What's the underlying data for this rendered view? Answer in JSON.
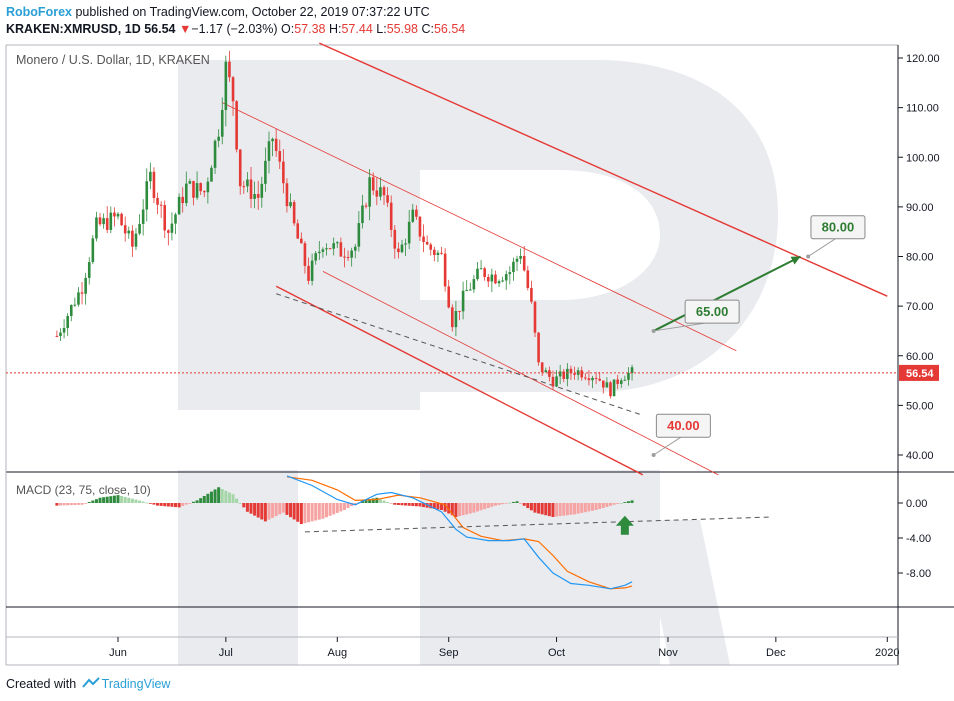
{
  "header": {
    "publisher": "RoboForex",
    "published_text": " published on TradingView.com, October 22, 2019 07:37:22 UTC",
    "symbol": "KRAKEN:XMRUSD, 1D",
    "price": "56.54",
    "change": "−1.17 (−2.03%)",
    "ohlc": {
      "o_label": "O:",
      "o": "57.38",
      "h_label": "H:",
      "h": "57.44",
      "l_label": "L:",
      "l": "55.98",
      "c_label": "C:",
      "c": "56.54"
    }
  },
  "main": {
    "pane_title": "Monero / U.S. Dollar, 1D, KRAKEN",
    "price_axis": [
      "120.00",
      "110.00",
      "100.00",
      "90.00",
      "80.00",
      "70.00",
      "60.00",
      "50.00",
      "40.00"
    ],
    "last_price_label": "56.54",
    "target_labels": [
      "80.00",
      "65.00",
      "40.00"
    ]
  },
  "macd": {
    "title": "MACD (23, 75, close, 10)",
    "axis": [
      "0.00",
      "-4.00",
      "-8.00"
    ]
  },
  "time_axis": [
    "Jun",
    "Jul",
    "Aug",
    "Sep",
    "Oct",
    "Nov",
    "Dec",
    "2020"
  ],
  "footer": {
    "created_with": "Created with",
    "brand": "TradingView"
  },
  "colors": {
    "up": "#2e8b3d",
    "down": "#e53935",
    "channel": "#e53935",
    "macd_line": "#2196f3",
    "signal_line": "#ff6d00",
    "target_up": "#2e7d32",
    "target_down": "#e53935"
  },
  "chart_data": {
    "type": "candlestick",
    "title": "Monero / U.S. Dollar, 1D, KRAKEN",
    "ylim": [
      35,
      123
    ],
    "x_range": [
      "2019-05-15",
      "2020-01-01"
    ],
    "last_price": 56.54,
    "close_path": [
      {
        "date": "2019-05-15",
        "close": 64
      },
      {
        "date": "2019-05-22",
        "close": 74
      },
      {
        "date": "2019-05-26",
        "close": 86
      },
      {
        "date": "2019-06-01",
        "close": 88
      },
      {
        "date": "2019-06-05",
        "close": 82
      },
      {
        "date": "2019-06-10",
        "close": 96
      },
      {
        "date": "2019-06-15",
        "close": 85
      },
      {
        "date": "2019-06-20",
        "close": 94
      },
      {
        "date": "2019-06-25",
        "close": 93
      },
      {
        "date": "2019-06-29",
        "close": 106
      },
      {
        "date": "2019-07-01",
        "close": 118
      },
      {
        "date": "2019-07-03",
        "close": 112
      },
      {
        "date": "2019-07-05",
        "close": 95
      },
      {
        "date": "2019-07-10",
        "close": 92
      },
      {
        "date": "2019-07-14",
        "close": 104
      },
      {
        "date": "2019-07-17",
        "close": 95
      },
      {
        "date": "2019-07-20",
        "close": 86
      },
      {
        "date": "2019-07-24",
        "close": 76
      },
      {
        "date": "2019-07-28",
        "close": 83
      },
      {
        "date": "2019-08-02",
        "close": 81
      },
      {
        "date": "2019-08-06",
        "close": 82
      },
      {
        "date": "2019-08-10",
        "close": 95
      },
      {
        "date": "2019-08-14",
        "close": 92
      },
      {
        "date": "2019-08-18",
        "close": 80
      },
      {
        "date": "2019-08-22",
        "close": 88
      },
      {
        "date": "2019-08-26",
        "close": 82
      },
      {
        "date": "2019-08-30",
        "close": 80
      },
      {
        "date": "2019-09-02",
        "close": 67
      },
      {
        "date": "2019-09-06",
        "close": 73
      },
      {
        "date": "2019-09-10",
        "close": 77
      },
      {
        "date": "2019-09-14",
        "close": 76
      },
      {
        "date": "2019-09-18",
        "close": 77
      },
      {
        "date": "2019-09-21",
        "close": 81
      },
      {
        "date": "2019-09-24",
        "close": 70
      },
      {
        "date": "2019-09-26",
        "close": 58
      },
      {
        "date": "2019-09-30",
        "close": 55
      },
      {
        "date": "2019-10-06",
        "close": 57
      },
      {
        "date": "2019-10-12",
        "close": 56
      },
      {
        "date": "2019-10-16",
        "close": 53
      },
      {
        "date": "2019-10-19",
        "close": 56
      },
      {
        "date": "2019-10-22",
        "close": 56.54
      }
    ],
    "annotations": [
      {
        "label": "65.00",
        "start": [
          "2019-10-28",
          65
        ],
        "end": [
          "2019-12-09",
          80
        ],
        "label_pos": [
          "2019-11-13",
          69
        ]
      },
      {
        "label": "80.00",
        "target_pos": [
          "2019-12-10",
          80
        ],
        "label_pos": [
          "2019-12-18",
          86
        ]
      },
      {
        "label": "40.00",
        "target_pos": [
          "2019-10-28",
          40
        ],
        "label_pos": [
          "2019-11-05",
          46
        ]
      }
    ],
    "channels": [
      {
        "from": [
          "2019-06-30",
          111
        ],
        "to": [
          "2019-11-20",
          61
        ],
        "color": "#e53935",
        "width": 0.8
      },
      {
        "from": [
          "2019-07-28",
          77
        ],
        "to": [
          "2019-11-15",
          36
        ],
        "color": "#e53935",
        "width": 0.8
      },
      {
        "from": [
          "2019-07-15",
          74
        ],
        "to": [
          "2019-10-25",
          36
        ],
        "color": "#e53935",
        "width": 1.4
      },
      {
        "from": [
          "2019-07-27",
          123
        ],
        "to": [
          "2020-01-01",
          72
        ],
        "color": "#e53935",
        "width": 1.4
      }
    ],
    "support_dashed": {
      "from": [
        "2019-07-15",
        72.5
      ],
      "to": [
        "2019-10-25",
        48
      ]
    },
    "macd": {
      "ylim": [
        -11.5,
        3.0
      ],
      "zero": 0,
      "macd_line": [
        {
          "date": "2019-07-18",
          "v": 3.1
        },
        {
          "date": "2019-07-25",
          "v": 2.0
        },
        {
          "date": "2019-08-01",
          "v": 0.4
        },
        {
          "date": "2019-08-06",
          "v": -0.2
        },
        {
          "date": "2019-08-12",
          "v": 1.0
        },
        {
          "date": "2019-08-16",
          "v": 1.2
        },
        {
          "date": "2019-08-22",
          "v": 0.6
        },
        {
          "date": "2019-08-30",
          "v": -1.0
        },
        {
          "date": "2019-09-03",
          "v": -3.0
        },
        {
          "date": "2019-09-06",
          "v": -3.9
        },
        {
          "date": "2019-09-12",
          "v": -4.3
        },
        {
          "date": "2019-09-18",
          "v": -4.3
        },
        {
          "date": "2019-09-22",
          "v": -4.1
        },
        {
          "date": "2019-09-26",
          "v": -6.2
        },
        {
          "date": "2019-09-30",
          "v": -8.0
        },
        {
          "date": "2019-10-05",
          "v": -9.2
        },
        {
          "date": "2019-10-10",
          "v": -9.4
        },
        {
          "date": "2019-10-16",
          "v": -9.8
        },
        {
          "date": "2019-10-20",
          "v": -9.4
        },
        {
          "date": "2019-10-22",
          "v": -9.0
        }
      ],
      "signal_line": [
        {
          "date": "2019-07-18",
          "v": 3.0
        },
        {
          "date": "2019-07-25",
          "v": 2.6
        },
        {
          "date": "2019-08-01",
          "v": 1.5
        },
        {
          "date": "2019-08-06",
          "v": 0.3
        },
        {
          "date": "2019-08-12",
          "v": 0.4
        },
        {
          "date": "2019-08-18",
          "v": 0.9
        },
        {
          "date": "2019-08-24",
          "v": 0.6
        },
        {
          "date": "2019-08-31",
          "v": -0.2
        },
        {
          "date": "2019-09-05",
          "v": -2.8
        },
        {
          "date": "2019-09-10",
          "v": -3.8
        },
        {
          "date": "2019-09-16",
          "v": -4.3
        },
        {
          "date": "2019-09-22",
          "v": -4.1
        },
        {
          "date": "2019-09-26",
          "v": -4.4
        },
        {
          "date": "2019-09-30",
          "v": -6.0
        },
        {
          "date": "2019-10-04",
          "v": -7.8
        },
        {
          "date": "2019-10-10",
          "v": -9.0
        },
        {
          "date": "2019-10-16",
          "v": -9.8
        },
        {
          "date": "2019-10-20",
          "v": -9.7
        },
        {
          "date": "2019-10-22",
          "v": -9.5
        }
      ],
      "histogram_path": [
        {
          "date": "2019-05-15",
          "v": -0.3
        },
        {
          "date": "2019-05-22",
          "v": -0.2
        },
        {
          "date": "2019-05-27",
          "v": 0.6
        },
        {
          "date": "2019-06-01",
          "v": 0.9
        },
        {
          "date": "2019-06-06",
          "v": 0.4
        },
        {
          "date": "2019-06-12",
          "v": -0.3
        },
        {
          "date": "2019-06-18",
          "v": -0.5
        },
        {
          "date": "2019-06-23",
          "v": 0.3
        },
        {
          "date": "2019-06-29",
          "v": 1.8
        },
        {
          "date": "2019-07-03",
          "v": 1.0
        },
        {
          "date": "2019-07-07",
          "v": -1.0
        },
        {
          "date": "2019-07-12",
          "v": -2.1
        },
        {
          "date": "2019-07-17",
          "v": -1.1
        },
        {
          "date": "2019-07-22",
          "v": -2.4
        },
        {
          "date": "2019-07-28",
          "v": -1.8
        },
        {
          "date": "2019-08-03",
          "v": -0.8
        },
        {
          "date": "2019-08-08",
          "v": 0.3
        },
        {
          "date": "2019-08-12",
          "v": 0.6
        },
        {
          "date": "2019-08-17",
          "v": -0.2
        },
        {
          "date": "2019-08-24",
          "v": -0.4
        },
        {
          "date": "2019-08-30",
          "v": -0.8
        },
        {
          "date": "2019-09-03",
          "v": -1.6
        },
        {
          "date": "2019-09-08",
          "v": -1.1
        },
        {
          "date": "2019-09-14",
          "v": -0.3
        },
        {
          "date": "2019-09-20",
          "v": 0.2
        },
        {
          "date": "2019-09-25",
          "v": -1.1
        },
        {
          "date": "2019-09-30",
          "v": -1.6
        },
        {
          "date": "2019-10-06",
          "v": -1.3
        },
        {
          "date": "2019-10-12",
          "v": -0.8
        },
        {
          "date": "2019-10-17",
          "v": -0.2
        },
        {
          "date": "2019-10-22",
          "v": 0.3
        }
      ],
      "dashed_trend": {
        "from": [
          "2019-07-23",
          -3.3
        ],
        "to": [
          "2019-11-30",
          -1.6
        ]
      },
      "up_arrow": {
        "date": "2019-10-20",
        "v": -2.6
      }
    }
  }
}
